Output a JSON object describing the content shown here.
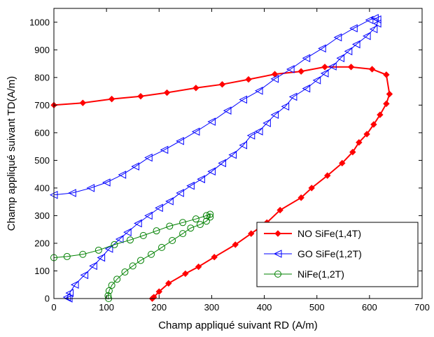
{
  "chart_data": {
    "type": "line",
    "title": "",
    "xlabel": "Champ appliqué suivant RD (A/m)",
    "ylabel": "Champ appliqué suivant TD(A/m)",
    "xlim": [
      0,
      700
    ],
    "ylim": [
      0,
      1050
    ],
    "x_ticks": [
      "0",
      "100",
      "200",
      "300",
      "400",
      "500",
      "600",
      "700"
    ],
    "y_ticks": [
      "0",
      "100",
      "200",
      "300",
      "400",
      "500",
      "600",
      "700",
      "800",
      "900",
      "1000"
    ],
    "grid": false,
    "legend_position": "bottom-right",
    "series": [
      {
        "name": "NO SiFe(1,4T)",
        "color": "#ff0000",
        "marker": "diamond-filled",
        "points": [
          [
            0,
            700
          ],
          [
            55,
            708
          ],
          [
            110,
            722
          ],
          [
            165,
            732
          ],
          [
            215,
            745
          ],
          [
            270,
            762
          ],
          [
            320,
            775
          ],
          [
            370,
            793
          ],
          [
            420,
            812
          ],
          [
            470,
            822
          ],
          [
            515,
            838
          ],
          [
            565,
            838
          ],
          [
            605,
            830
          ],
          [
            632,
            810
          ],
          [
            638,
            740
          ],
          [
            632,
            705
          ],
          [
            620,
            665
          ],
          [
            608,
            630
          ],
          [
            595,
            595
          ],
          [
            580,
            565
          ],
          [
            568,
            530
          ],
          [
            548,
            490
          ],
          [
            520,
            445
          ],
          [
            490,
            400
          ],
          [
            470,
            365
          ],
          [
            430,
            320
          ],
          [
            405,
            275
          ],
          [
            375,
            235
          ],
          [
            345,
            195
          ],
          [
            305,
            150
          ],
          [
            275,
            115
          ],
          [
            250,
            90
          ],
          [
            218,
            55
          ],
          [
            200,
            25
          ],
          [
            190,
            5
          ],
          [
            187,
            0
          ]
        ]
      },
      {
        "name": "GO SiFe(1,2T)",
        "color": "#0000ff",
        "marker": "triangle-left-open",
        "points": [
          [
            0,
            375
          ],
          [
            35,
            382
          ],
          [
            70,
            400
          ],
          [
            100,
            420
          ],
          [
            130,
            448
          ],
          [
            155,
            478
          ],
          [
            180,
            510
          ],
          [
            210,
            538
          ],
          [
            240,
            570
          ],
          [
            270,
            604
          ],
          [
            300,
            640
          ],
          [
            330,
            680
          ],
          [
            360,
            720
          ],
          [
            390,
            752
          ],
          [
            420,
            795
          ],
          [
            450,
            830
          ],
          [
            480,
            870
          ],
          [
            510,
            905
          ],
          [
            540,
            945
          ],
          [
            570,
            978
          ],
          [
            600,
            1008
          ],
          [
            610,
            1015
          ],
          [
            615,
            1010
          ],
          [
            615,
            995
          ],
          [
            608,
            975
          ],
          [
            595,
            950
          ],
          [
            575,
            920
          ],
          [
            560,
            895
          ],
          [
            545,
            870
          ],
          [
            530,
            840
          ],
          [
            515,
            815
          ],
          [
            500,
            790
          ],
          [
            480,
            760
          ],
          [
            455,
            730
          ],
          [
            440,
            695
          ],
          [
            420,
            665
          ],
          [
            405,
            635
          ],
          [
            390,
            605
          ],
          [
            375,
            590
          ],
          [
            360,
            555
          ],
          [
            340,
            520
          ],
          [
            320,
            490
          ],
          [
            300,
            460
          ],
          [
            280,
            432
          ],
          [
            260,
            408
          ],
          [
            240,
            382
          ],
          [
            220,
            352
          ],
          [
            200,
            328
          ],
          [
            180,
            300
          ],
          [
            160,
            272
          ],
          [
            140,
            240
          ],
          [
            125,
            215
          ],
          [
            105,
            180
          ],
          [
            90,
            148
          ],
          [
            75,
            118
          ],
          [
            58,
            85
          ],
          [
            40,
            50
          ],
          [
            30,
            20
          ],
          [
            25,
            5
          ],
          [
            28,
            0
          ]
        ]
      },
      {
        "name": "NiFe(1,2T)",
        "color": "#008000",
        "marker": "circle-open",
        "points": [
          [
            0,
            148
          ],
          [
            25,
            152
          ],
          [
            55,
            160
          ],
          [
            85,
            175
          ],
          [
            115,
            195
          ],
          [
            145,
            212
          ],
          [
            170,
            228
          ],
          [
            195,
            245
          ],
          [
            220,
            262
          ],
          [
            245,
            275
          ],
          [
            270,
            288
          ],
          [
            290,
            300
          ],
          [
            297,
            305
          ],
          [
            297,
            295
          ],
          [
            290,
            280
          ],
          [
            278,
            268
          ],
          [
            260,
            255
          ],
          [
            245,
            235
          ],
          [
            225,
            210
          ],
          [
            205,
            185
          ],
          [
            185,
            160
          ],
          [
            165,
            138
          ],
          [
            150,
            118
          ],
          [
            135,
            96
          ],
          [
            120,
            70
          ],
          [
            110,
            48
          ],
          [
            105,
            28
          ],
          [
            103,
            10
          ],
          [
            104,
            0
          ]
        ]
      }
    ]
  }
}
